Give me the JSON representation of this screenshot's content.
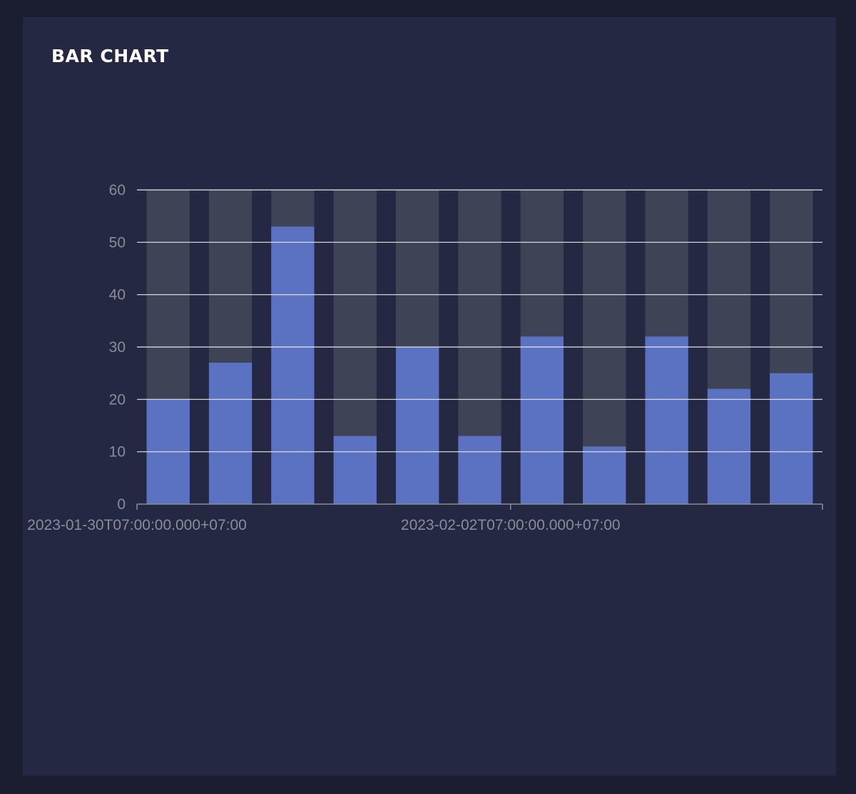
{
  "card": {
    "title": "BAR CHART"
  },
  "colors": {
    "background": "#1b1e30",
    "card": "#242843",
    "bar": "#5b72c3",
    "bar_background": "#3f4356",
    "grid": "#e6e6e6",
    "tick_text": "#8a8d99"
  },
  "chart_data": {
    "type": "bar",
    "title": "",
    "xlabel": "",
    "ylabel": "",
    "ylim": [
      0,
      60
    ],
    "y_ticks": [
      0,
      10,
      20,
      30,
      40,
      50,
      60
    ],
    "grid": true,
    "background_bars": true,
    "x_tick_labels": [
      "2023-01-30T07:00:00.000+07:00",
      "2023-02-02T07:00:00.000+07:00"
    ],
    "values": [
      20,
      27,
      53,
      13,
      30,
      13,
      32,
      11,
      32,
      22,
      25
    ]
  }
}
